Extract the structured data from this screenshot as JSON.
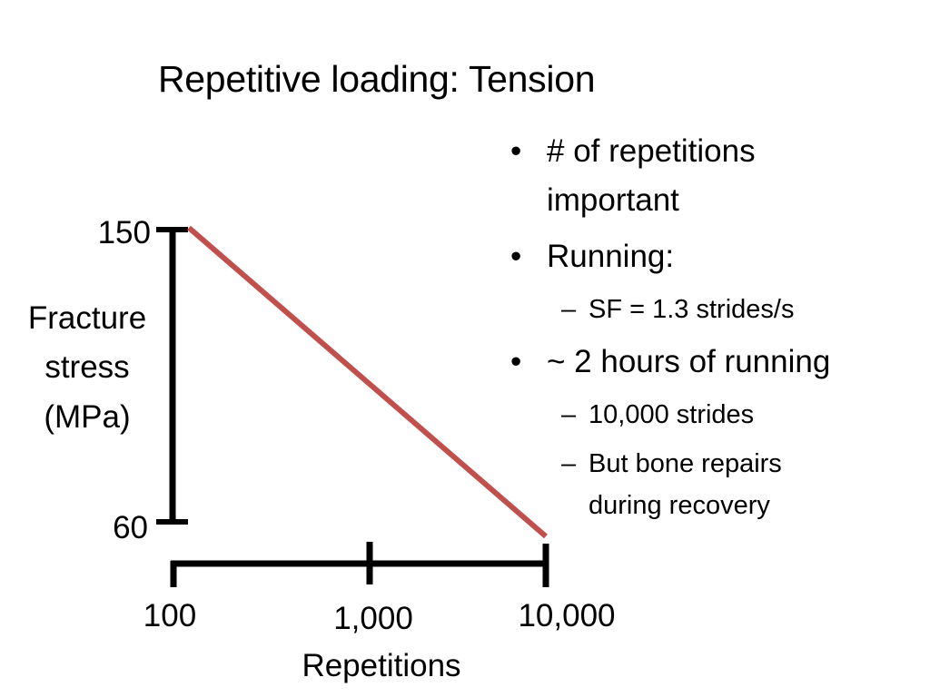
{
  "slide": {
    "title": "Repetitive loading: Tension"
  },
  "bullets": {
    "b1_line1": "# of repetitions",
    "b1_line2": "important",
    "b2": "Running:",
    "b2_sub": "SF = 1.3 strides/s",
    "b3": "~ 2 hours of running",
    "b3_sub1": "10,000 strides",
    "b3_sub2_line1": "But bone repairs",
    "b3_sub2_line2": "during recovery",
    "bullet_glyph": "•",
    "dash_glyph": "–"
  },
  "chart_data": {
    "type": "line",
    "x_scale": "log",
    "x": [
      100,
      10000
    ],
    "y": [
      150,
      60
    ],
    "xlim": [
      100,
      10000
    ],
    "ylim": [
      60,
      150
    ],
    "xticks": [
      "100",
      "1,000",
      "10,000"
    ],
    "yticks": [
      "150",
      "60"
    ],
    "xlabel": "Repetitions",
    "ylabel_lines": [
      "Fracture",
      "stress",
      "(MPa)"
    ],
    "line_color": "#c0504d",
    "axis_color": "#000000",
    "grid": false
  }
}
